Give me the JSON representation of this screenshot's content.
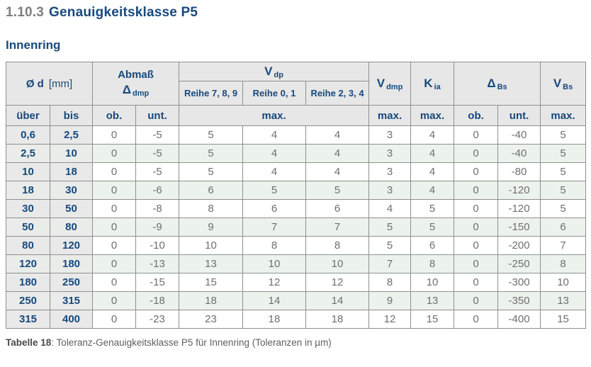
{
  "page": {
    "heading": {
      "number": "1.10.3",
      "title": "Genauigkeitsklasse P5"
    },
    "subheading": "Innenring",
    "caption": {
      "label": "Tabelle 18",
      "text": ": Toleranz-Genauigkeitsklasse P5 für Innenring (Toleranzen in µm)"
    }
  },
  "table": {
    "header": {
      "d": {
        "symbol": "Ø d",
        "unit": "[mm]"
      },
      "abmass": {
        "title": "Abmaß",
        "symbol": "Δ",
        "sub": "dmp"
      },
      "vdp": {
        "symbol": "V",
        "sub": "dp"
      },
      "reihe": [
        "Reihe 7, 8, 9",
        "Reihe 0, 1",
        "Reihe 2, 3, 4"
      ],
      "vdmp": {
        "symbol": "V",
        "sub": "dmp"
      },
      "kia": {
        "symbol": "K",
        "sub": "ia"
      },
      "dbs": {
        "symbol": "Δ",
        "sub": "Bs"
      },
      "vbs": {
        "symbol": "V",
        "sub": "Bs"
      },
      "labels": {
        "ueber": "über",
        "bis": "bis",
        "ob": "ob.",
        "unt": "unt.",
        "max": "max."
      }
    },
    "rows": [
      [
        "0,6",
        "2,5",
        "0",
        "-5",
        "5",
        "4",
        "4",
        "3",
        "4",
        "0",
        "-40",
        "5"
      ],
      [
        "2,5",
        "10",
        "0",
        "-5",
        "5",
        "4",
        "4",
        "3",
        "4",
        "0",
        "-40",
        "5"
      ],
      [
        "10",
        "18",
        "0",
        "-5",
        "5",
        "4",
        "4",
        "3",
        "4",
        "0",
        "-80",
        "5"
      ],
      [
        "18",
        "30",
        "0",
        "-6",
        "6",
        "5",
        "5",
        "3",
        "4",
        "0",
        "-120",
        "5"
      ],
      [
        "30",
        "50",
        "0",
        "-8",
        "8",
        "6",
        "6",
        "4",
        "5",
        "0",
        "-120",
        "5"
      ],
      [
        "50",
        "80",
        "0",
        "-9",
        "9",
        "7",
        "7",
        "5",
        "5",
        "0",
        "-150",
        "6"
      ],
      [
        "80",
        "120",
        "0",
        "-10",
        "10",
        "8",
        "8",
        "5",
        "6",
        "0",
        "-200",
        "7"
      ],
      [
        "120",
        "180",
        "0",
        "-13",
        "13",
        "10",
        "10",
        "7",
        "8",
        "0",
        "-250",
        "8"
      ],
      [
        "180",
        "250",
        "0",
        "-15",
        "15",
        "12",
        "12",
        "8",
        "10",
        "0",
        "-300",
        "10"
      ],
      [
        "250",
        "315",
        "0",
        "-18",
        "18",
        "14",
        "14",
        "9",
        "13",
        "0",
        "-350",
        "13"
      ],
      [
        "315",
        "400",
        "0",
        "-23",
        "23",
        "18",
        "18",
        "12",
        "15",
        "0",
        "-400",
        "15"
      ]
    ]
  },
  "colors": {
    "accent_blue": "#17497d",
    "header_gray": "#e7e7e7",
    "id_column_gray": "#e9e9e9",
    "row_green": "#ecf3ec",
    "body_text_gray": "#6f6f6f",
    "border_gray": "#8f8f8f"
  }
}
